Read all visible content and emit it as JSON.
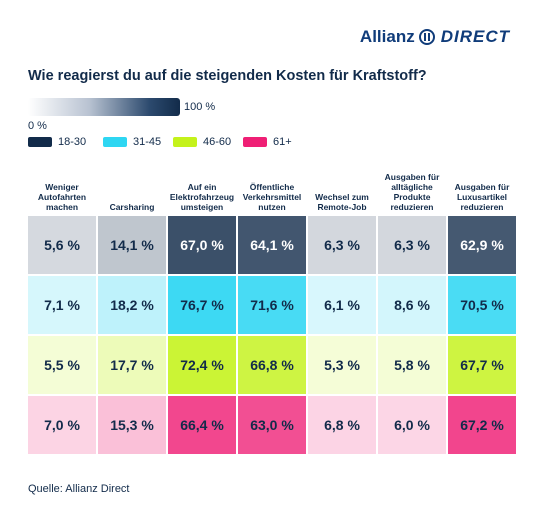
{
  "brand": {
    "name": "Allianz",
    "suffix": "DIRECT"
  },
  "chart_data": {
    "type": "heatmap",
    "title": "Wie reagierst du auf die steigenden Kosten für Kraftstoff?",
    "scale": {
      "min_label": "0 %",
      "max_label": "100 %",
      "min": 0,
      "max": 100
    },
    "columns": [
      "Weniger Autofahrten machen",
      "Carsharing",
      "Auf ein Elektrofahrzeug umsteigen",
      "Öffentliche Verkehrsmittel nutzen",
      "Wechsel zum Remote-Job",
      "Ausgaben für alltägliche Produkte reduzieren",
      "Ausgaben für Luxusartikel reduzieren"
    ],
    "series": [
      {
        "name": "18-30",
        "color": "#122b4a",
        "values": [
          5.6,
          14.1,
          67.0,
          64.1,
          6.3,
          6.3,
          62.9
        ]
      },
      {
        "name": "31-45",
        "color": "#2ed6f2",
        "values": [
          7.1,
          18.2,
          76.7,
          71.6,
          6.1,
          8.6,
          70.5
        ]
      },
      {
        "name": "46-60",
        "color": "#c4f21b",
        "values": [
          5.5,
          17.7,
          72.4,
          66.8,
          5.3,
          5.8,
          67.7
        ]
      },
      {
        "name": "61+",
        "color": "#ef1f75",
        "values": [
          7.0,
          15.3,
          66.4,
          63.0,
          6.8,
          6.0,
          67.2
        ]
      }
    ],
    "value_labels": [
      [
        "5,6 %",
        "14,1 %",
        "67,0 %",
        "64,1 %",
        "6,3 %",
        "6,3 %",
        "62,9 %"
      ],
      [
        "7,1 %",
        "18,2 %",
        "76,7 %",
        "71,6 %",
        "6,1 %",
        "8,6 %",
        "70,5 %"
      ],
      [
        "5,5 %",
        "17,7 %",
        "72,4 %",
        "66,8 %",
        "5,3 %",
        "5,8 %",
        "67,7 %"
      ],
      [
        "7,0 %",
        "15,3 %",
        "66,4 %",
        "63,0 %",
        "6,8 %",
        "6,0 %",
        "67,2 %"
      ]
    ]
  },
  "source": "Quelle: Allianz Direct"
}
